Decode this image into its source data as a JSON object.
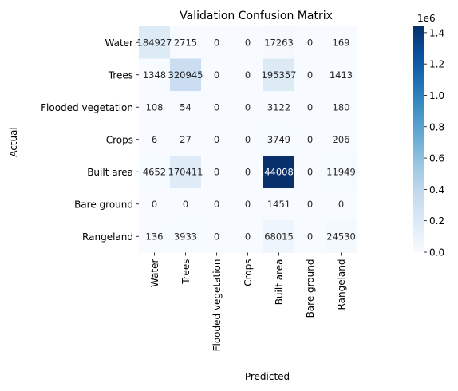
{
  "chart_data": {
    "type": "heatmap",
    "title": "Validation Confusion Matrix",
    "xlabel": "Predicted",
    "ylabel": "Actual",
    "x_categories": [
      "Water",
      "Trees",
      "Flooded vegetation",
      "Crops",
      "Built area",
      "Bare ground",
      "Rangeland"
    ],
    "y_categories": [
      "Water",
      "Trees",
      "Flooded vegetation",
      "Crops",
      "Built area",
      "Bare ground",
      "Rangeland"
    ],
    "values": [
      [
        184927,
        2715,
        0,
        0,
        17263,
        0,
        169
      ],
      [
        1348,
        320945,
        0,
        0,
        195357,
        0,
        1413
      ],
      [
        108,
        54,
        0,
        0,
        3122,
        0,
        180
      ],
      [
        6,
        27,
        0,
        0,
        3749,
        0,
        206
      ],
      [
        4652,
        170411,
        0,
        0,
        1440086,
        0,
        11949
      ],
      [
        0,
        0,
        0,
        0,
        1451,
        0,
        0
      ],
      [
        136,
        3933,
        0,
        0,
        68015,
        0,
        24530
      ]
    ],
    "cell_labels": [
      [
        "184927",
        "2715",
        "0",
        "0",
        "17263",
        "0",
        "169"
      ],
      [
        "1348",
        "320945",
        "0",
        "0",
        "195357",
        "0",
        "1413"
      ],
      [
        "108",
        "54",
        "0",
        "0",
        "3122",
        "0",
        "180"
      ],
      [
        "6",
        "27",
        "0",
        "0",
        "3749",
        "0",
        "206"
      ],
      [
        "4652",
        "170411",
        "0",
        "0",
        "1440086",
        "0",
        "11949"
      ],
      [
        "0",
        "0",
        "0",
        "0",
        "1451",
        "0",
        "0"
      ],
      [
        "136",
        "3933",
        "0",
        "0",
        "68015",
        "0",
        "24530"
      ]
    ],
    "colormap": "Blues",
    "color_range": [
      0,
      1440086
    ],
    "colorbar": {
      "ticks": [
        0,
        0.2,
        0.4,
        0.6,
        0.8,
        1.0,
        1.2,
        1.4
      ],
      "tick_labels": [
        "0.0",
        "0.2",
        "0.4",
        "0.6",
        "0.8",
        "1.0",
        "1.2",
        "1.4"
      ],
      "offset_label": "1e6",
      "max": 1.44
    }
  }
}
